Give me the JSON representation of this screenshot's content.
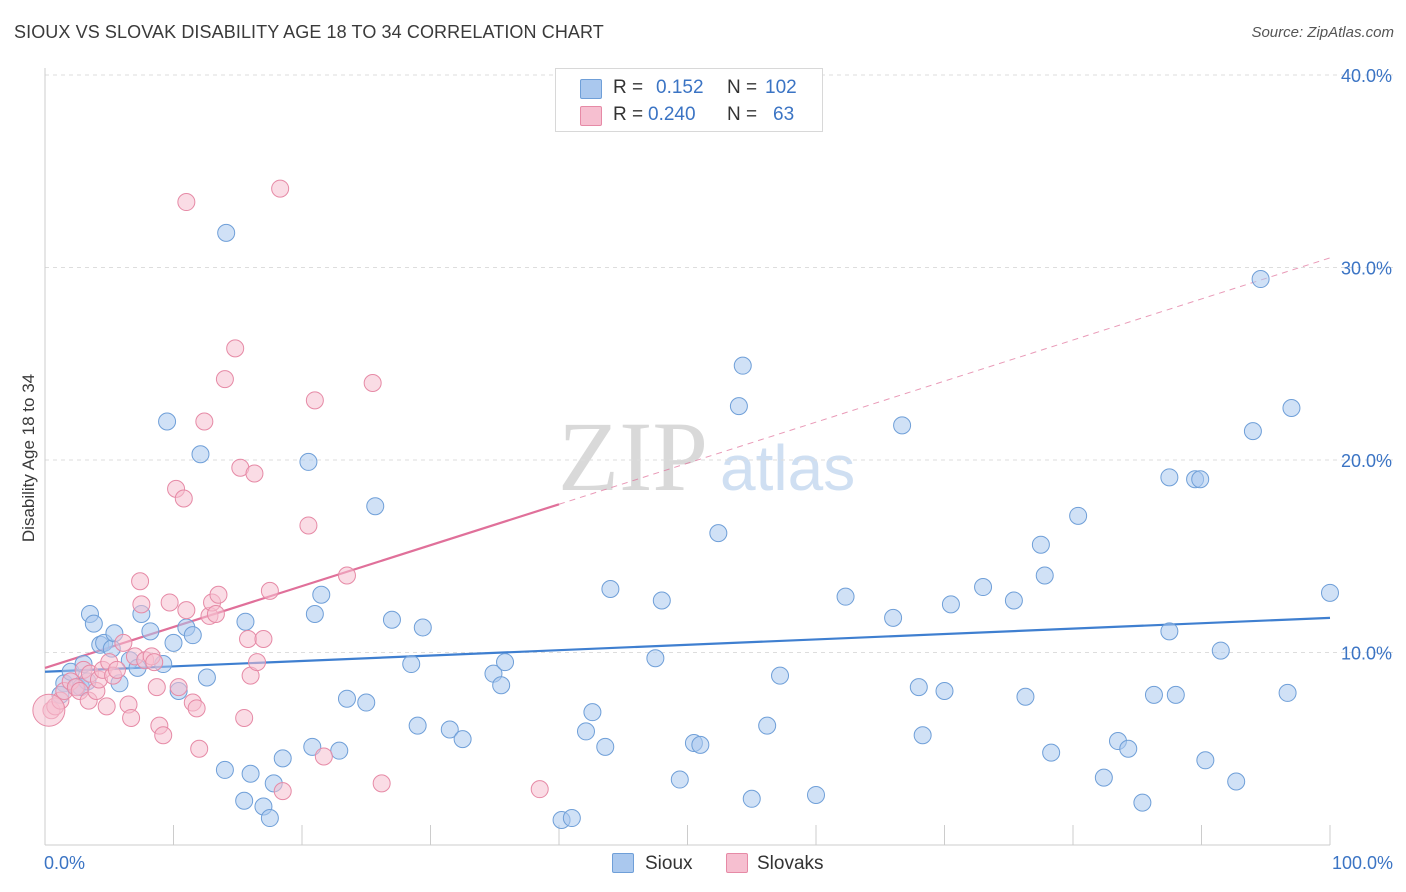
{
  "title": "SIOUX VS SLOVAK DISABILITY AGE 18 TO 34 CORRELATION CHART",
  "source": "Source: ZipAtlas.com",
  "watermark": {
    "zip": "ZIP",
    "atlas": "atlas"
  },
  "legend": {
    "rows": [
      {
        "r_label": "R =",
        "r_value": "0.152",
        "n_label": "N =",
        "n_value": "102",
        "color": "#aac8ee",
        "border": "#6f9fd8"
      },
      {
        "r_label": "R =",
        "r_value": "0.240",
        "n_label": "N =",
        "n_value": "63",
        "color": "#f6bfd0",
        "border": "#e68aa6"
      }
    ],
    "bottom": [
      {
        "label": "Sioux",
        "color": "#aac8ee",
        "border": "#6f9fd8"
      },
      {
        "label": "Slovaks",
        "color": "#f6bfd0",
        "border": "#e68aa6"
      }
    ]
  },
  "chart_data": {
    "type": "scatter",
    "title": "SIOUX VS SLOVAK DISABILITY AGE 18 TO 34 CORRELATION CHART",
    "xlabel": "",
    "ylabel": "Disability Age 18 to 34",
    "xlim": [
      0,
      100
    ],
    "ylim": [
      0,
      40
    ],
    "x_tick_labels": [
      "0.0%",
      "100.0%"
    ],
    "y_ticks": [
      10,
      20,
      30,
      40
    ],
    "y_tick_labels": [
      "10.0%",
      "20.0%",
      "30.0%",
      "40.0%"
    ],
    "grid": true,
    "legend_position": "top-center",
    "colors": {
      "sioux": "#3f7fd0",
      "sioux_fill": "#aac8ee",
      "slovaks": "#e0709a",
      "slovaks_fill": "#f6bfd0"
    },
    "series": [
      {
        "name": "Sioux",
        "r": 0.152,
        "n": 102,
        "trend": {
          "x": [
            0,
            100
          ],
          "y": [
            9.0,
            11.8
          ]
        },
        "points": [
          [
            1.5,
            8.4
          ],
          [
            1.2,
            7.8
          ],
          [
            2,
            9.0
          ],
          [
            2.5,
            8.2
          ],
          [
            2.8,
            8.2
          ],
          [
            3,
            9.4
          ],
          [
            3.3,
            8.5
          ],
          [
            3.5,
            12.0
          ],
          [
            3.8,
            11.5
          ],
          [
            4.3,
            10.4
          ],
          [
            4.6,
            10.5
          ],
          [
            5.2,
            10.2
          ],
          [
            5.4,
            11.0
          ],
          [
            5.8,
            8.4
          ],
          [
            6.6,
            9.6
          ],
          [
            7.2,
            9.2
          ],
          [
            7.5,
            12.0
          ],
          [
            8.2,
            11.1
          ],
          [
            9.2,
            9.4
          ],
          [
            9.5,
            22.0
          ],
          [
            10,
            10.5
          ],
          [
            10.4,
            8.0
          ],
          [
            11,
            11.3
          ],
          [
            11.5,
            10.9
          ],
          [
            12.1,
            20.3
          ],
          [
            12.6,
            8.7
          ],
          [
            14.1,
            31.8
          ],
          [
            14,
            3.9
          ],
          [
            15.5,
            2.3
          ],
          [
            15.6,
            11.6
          ],
          [
            16,
            3.7
          ],
          [
            17,
            2.0
          ],
          [
            17.5,
            1.4
          ],
          [
            17.8,
            3.2
          ],
          [
            18.5,
            4.5
          ],
          [
            20.5,
            19.9
          ],
          [
            20.8,
            5.1
          ],
          [
            21.5,
            13.0
          ],
          [
            21,
            12.0
          ],
          [
            22.9,
            4.9
          ],
          [
            23.5,
            7.6
          ],
          [
            25,
            7.4
          ],
          [
            25.7,
            17.6
          ],
          [
            27,
            11.7
          ],
          [
            28.5,
            9.4
          ],
          [
            29.4,
            11.3
          ],
          [
            29,
            6.2
          ],
          [
            31.5,
            6.0
          ],
          [
            32.5,
            5.5
          ],
          [
            34.9,
            8.9
          ],
          [
            35.5,
            8.3
          ],
          [
            35.8,
            9.5
          ],
          [
            40.2,
            1.3
          ],
          [
            41,
            1.4
          ],
          [
            42.1,
            5.9
          ],
          [
            42.6,
            6.9
          ],
          [
            43.6,
            5.1
          ],
          [
            44,
            13.3
          ],
          [
            47.5,
            9.7
          ],
          [
            48,
            12.7
          ],
          [
            49.4,
            3.4
          ],
          [
            50.5,
            5.3
          ],
          [
            51,
            5.2
          ],
          [
            52.4,
            16.2
          ],
          [
            54,
            22.8
          ],
          [
            54.3,
            24.9
          ],
          [
            55,
            2.4
          ],
          [
            56.2,
            6.2
          ],
          [
            57.2,
            8.8
          ],
          [
            60,
            2.6
          ],
          [
            62.3,
            12.9
          ],
          [
            66,
            11.8
          ],
          [
            66.7,
            21.8
          ],
          [
            68,
            8.2
          ],
          [
            68.3,
            5.7
          ],
          [
            70,
            8.0
          ],
          [
            70.5,
            12.5
          ],
          [
            73,
            13.4
          ],
          [
            75.4,
            12.7
          ],
          [
            76.3,
            7.7
          ],
          [
            77.5,
            15.6
          ],
          [
            77.8,
            14.0
          ],
          [
            78.3,
            4.8
          ],
          [
            80.4,
            17.1
          ],
          [
            82.4,
            3.5
          ],
          [
            83.5,
            5.4
          ],
          [
            84.3,
            5.0
          ],
          [
            85.4,
            2.2
          ],
          [
            86.3,
            7.8
          ],
          [
            87.5,
            11.1
          ],
          [
            87.5,
            19.1
          ],
          [
            88,
            7.8
          ],
          [
            89.5,
            19.0
          ],
          [
            89.9,
            19.0
          ],
          [
            90.3,
            4.4
          ],
          [
            91.5,
            10.1
          ],
          [
            92.7,
            3.3
          ],
          [
            94,
            21.5
          ],
          [
            94.6,
            29.4
          ],
          [
            96.7,
            7.9
          ],
          [
            97,
            22.7
          ],
          [
            100,
            13.1
          ]
        ]
      },
      {
        "name": "Slovaks",
        "r": 0.24,
        "n": 63,
        "trend_solid": {
          "x": [
            0,
            40
          ],
          "y": [
            9.2,
            17.7
          ]
        },
        "trend_dashed": {
          "x": [
            40,
            100
          ],
          "y": [
            17.7,
            30.5
          ]
        },
        "points": [
          [
            0.5,
            7.0
          ],
          [
            0.8,
            7.2
          ],
          [
            1.2,
            7.5
          ],
          [
            1.5,
            8.0
          ],
          [
            2,
            8.5
          ],
          [
            2.4,
            8.2
          ],
          [
            2.7,
            8.0
          ],
          [
            3,
            9.1
          ],
          [
            3.5,
            8.9
          ],
          [
            3.4,
            7.5
          ],
          [
            4,
            8.0
          ],
          [
            4.2,
            8.6
          ],
          [
            4.5,
            9.1
          ],
          [
            4.8,
            7.2
          ],
          [
            5,
            9.5
          ],
          [
            5.3,
            8.8
          ],
          [
            5.6,
            9.1
          ],
          [
            6.1,
            10.5
          ],
          [
            6.5,
            7.3
          ],
          [
            6.7,
            6.6
          ],
          [
            7,
            9.8
          ],
          [
            7.4,
            13.7
          ],
          [
            7.5,
            12.5
          ],
          [
            7.8,
            9.6
          ],
          [
            8.3,
            9.8
          ],
          [
            8.5,
            9.5
          ],
          [
            8.7,
            8.2
          ],
          [
            8.9,
            6.2
          ],
          [
            9.2,
            5.7
          ],
          [
            9.7,
            12.6
          ],
          [
            10.2,
            18.5
          ],
          [
            10.4,
            8.2
          ],
          [
            10.8,
            18.0
          ],
          [
            11,
            12.2
          ],
          [
            11,
            33.4
          ],
          [
            11.5,
            7.4
          ],
          [
            11.8,
            7.1
          ],
          [
            12,
            5.0
          ],
          [
            12.4,
            22.0
          ],
          [
            12.8,
            11.9
          ],
          [
            13,
            12.6
          ],
          [
            13.3,
            12.0
          ],
          [
            13.5,
            13.0
          ],
          [
            14,
            24.2
          ],
          [
            14.8,
            25.8
          ],
          [
            15.2,
            19.6
          ],
          [
            15.5,
            6.6
          ],
          [
            15.8,
            10.7
          ],
          [
            16,
            8.8
          ],
          [
            16.3,
            19.3
          ],
          [
            16.5,
            9.5
          ],
          [
            17,
            10.7
          ],
          [
            17.5,
            13.2
          ],
          [
            18.3,
            34.1
          ],
          [
            18.5,
            2.8
          ],
          [
            20.5,
            16.6
          ],
          [
            21,
            23.1
          ],
          [
            21.7,
            4.6
          ],
          [
            23.5,
            14.0
          ],
          [
            25.5,
            24.0
          ],
          [
            26.2,
            3.2
          ],
          [
            38.5,
            2.9
          ],
          [
            0.3,
            7.0
          ]
        ]
      }
    ]
  }
}
